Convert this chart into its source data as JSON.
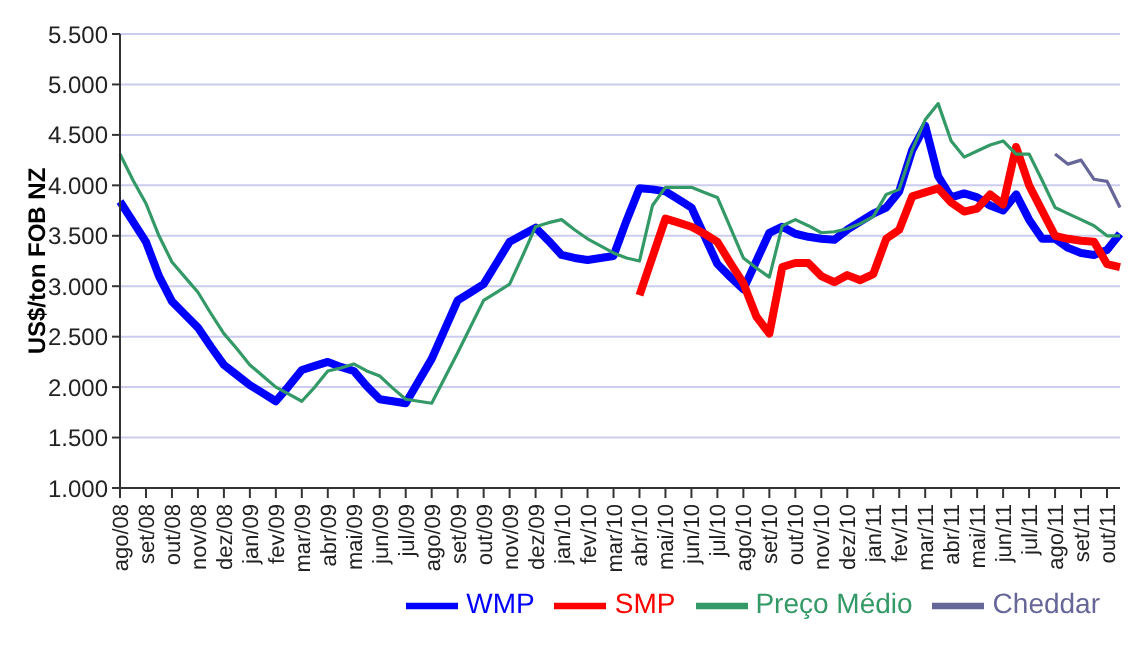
{
  "chart_data": {
    "type": "line",
    "ylabel": "US$/ton FOB NZ",
    "categories": [
      "ago/08",
      null,
      "set/08",
      null,
      "out/08",
      null,
      "nov/08",
      null,
      "dez/08",
      null,
      "jan/09",
      null,
      "fev/09",
      null,
      "mar/09",
      null,
      "abr/09",
      null,
      "mai/09",
      null,
      "jun/09",
      null,
      "jul/09",
      null,
      "ago/09",
      null,
      "set/09",
      null,
      "out/09",
      null,
      "nov/09",
      null,
      "dez/09",
      null,
      "jan/10",
      null,
      "fev/10",
      null,
      "mar/10",
      null,
      "abr/10",
      null,
      "mai/10",
      null,
      "jun/10",
      null,
      "jul/10",
      null,
      "ago/10",
      null,
      "set/10",
      null,
      "out/10",
      null,
      "nov/10",
      null,
      "dez/10",
      null,
      "jan/11",
      null,
      "fev/11",
      null,
      "mar/11",
      null,
      "abr/11",
      null,
      "mai/11",
      null,
      "jun/11",
      null,
      "jul/11",
      null,
      "ago/11",
      null,
      "set/11",
      null,
      "out/11",
      null
    ],
    "series": [
      {
        "name": "WMP",
        "color": "#0000ff",
        "values": [
          3840,
          3640,
          3440,
          3100,
          2850,
          2720,
          2590,
          2400,
          2220,
          2120,
          2020,
          1940,
          1860,
          2010,
          2170,
          2210,
          2250,
          2200,
          2160,
          2010,
          1880,
          1860,
          1840,
          2060,
          2280,
          2570,
          2860,
          2940,
          3020,
          3230,
          3440,
          3510,
          3580,
          3450,
          3310,
          3280,
          3260,
          3280,
          3300,
          3650,
          3970,
          3960,
          3940,
          3860,
          3780,
          3500,
          3220,
          3090,
          2970,
          3250,
          3530,
          3590,
          3520,
          3490,
          3470,
          3460,
          3560,
          3640,
          3720,
          3780,
          3940,
          4350,
          4590,
          4090,
          3880,
          3920,
          3880,
          3800,
          3750,
          3910,
          3660,
          3470,
          3470,
          3380,
          3330,
          3310,
          3360,
          3520
        ]
      },
      {
        "name": "SMP",
        "color": "#ff0000",
        "values": [
          null,
          null,
          null,
          null,
          null,
          null,
          null,
          null,
          null,
          null,
          null,
          null,
          null,
          null,
          null,
          null,
          null,
          null,
          null,
          null,
          null,
          null,
          null,
          null,
          null,
          null,
          null,
          null,
          null,
          null,
          null,
          null,
          null,
          null,
          null,
          null,
          null,
          null,
          null,
          null,
          2910,
          3290,
          3670,
          3630,
          3590,
          3520,
          3440,
          3230,
          3030,
          2700,
          2530,
          3190,
          3230,
          3230,
          3100,
          3040,
          3110,
          3060,
          3120,
          3470,
          3560,
          3890,
          3930,
          3970,
          3830,
          3740,
          3770,
          3910,
          3810,
          4380,
          4000,
          3750,
          3500,
          3470,
          3450,
          3440,
          3220,
          3190
        ]
      },
      {
        "name": "Preço Médio",
        "color": "#339966",
        "values": [
          4310,
          4050,
          3820,
          3500,
          3240,
          3090,
          2940,
          2730,
          2530,
          2380,
          2220,
          2110,
          2000,
          1930,
          1860,
          2000,
          2160,
          2190,
          2230,
          2160,
          2110,
          1990,
          1880,
          1860,
          1840,
          2090,
          2340,
          2600,
          2860,
          2940,
          3020,
          3300,
          3590,
          3630,
          3660,
          3560,
          3470,
          3400,
          3330,
          3280,
          3250,
          3800,
          3980,
          3980,
          3980,
          3930,
          3880,
          3580,
          3280,
          3180,
          3090,
          3600,
          3660,
          3600,
          3530,
          3540,
          3570,
          3620,
          3690,
          3910,
          3960,
          4350,
          4650,
          4810,
          4440,
          4280,
          4340,
          4400,
          4440,
          4310,
          4310,
          4050,
          3780,
          3720,
          3660,
          3600,
          3500,
          3500
        ]
      },
      {
        "name": "Cheddar",
        "color": "#666699",
        "values": [
          null,
          null,
          null,
          null,
          null,
          null,
          null,
          null,
          null,
          null,
          null,
          null,
          null,
          null,
          null,
          null,
          null,
          null,
          null,
          null,
          null,
          null,
          null,
          null,
          null,
          null,
          null,
          null,
          null,
          null,
          null,
          null,
          null,
          null,
          null,
          null,
          null,
          null,
          null,
          null,
          null,
          null,
          null,
          null,
          null,
          null,
          null,
          null,
          null,
          null,
          null,
          null,
          null,
          null,
          null,
          null,
          null,
          null,
          null,
          null,
          null,
          null,
          null,
          null,
          null,
          null,
          null,
          null,
          null,
          null,
          null,
          null,
          4310,
          4210,
          4250,
          4060,
          4040,
          3780
        ]
      }
    ],
    "ylim": [
      1000,
      5500
    ],
    "yticks": [
      {
        "value": 1000,
        "label": "1.000"
      },
      {
        "value": 1500,
        "label": "1.500"
      },
      {
        "value": 2000,
        "label": "2.000"
      },
      {
        "value": 2500,
        "label": "2.500"
      },
      {
        "value": 3000,
        "label": "3.000"
      },
      {
        "value": 3500,
        "label": "3.500"
      },
      {
        "value": 4000,
        "label": "4.000"
      },
      {
        "value": 4500,
        "label": "4.500"
      },
      {
        "value": 5000,
        "label": "5.000"
      },
      {
        "value": 5500,
        "label": "5.500"
      }
    ],
    "grid": "y",
    "legend": "bottom right",
    "marker": "none",
    "line_style": "solid"
  }
}
